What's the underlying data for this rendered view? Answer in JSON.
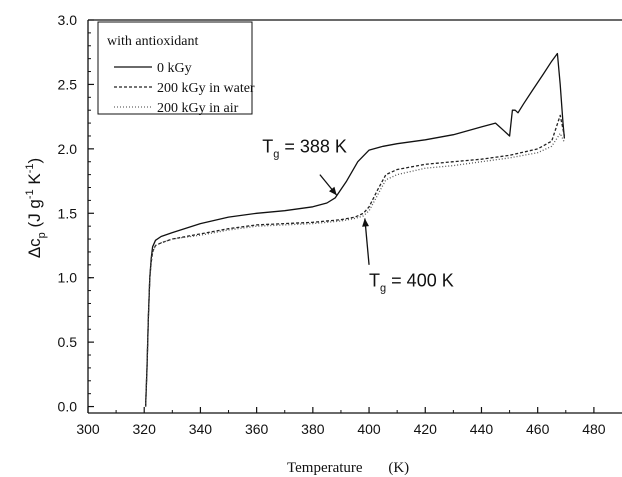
{
  "chart_data": {
    "type": "line",
    "xlabel": "Temperature",
    "xunit": "(K)",
    "ylabel": {
      "main": "Δc",
      "sub": "p",
      "unit_open": " (J g",
      "exp1": "-1",
      "unit_mid": " K",
      "exp2": "-1",
      "unit_close": ")"
    },
    "xlim": [
      300,
      490
    ],
    "ylim": [
      -0.05,
      3.0
    ],
    "xticks": [
      300,
      320,
      340,
      360,
      380,
      400,
      420,
      440,
      460,
      480
    ],
    "yticks": [
      0.0,
      0.5,
      1.0,
      1.5,
      2.0,
      2.5,
      3.0
    ],
    "xtick_labels": [
      "300",
      "320",
      "340",
      "360",
      "380",
      "400",
      "420",
      "440",
      "460",
      "480"
    ],
    "ytick_labels": [
      "0.0",
      "0.5",
      "1.0",
      "1.5",
      "2.0",
      "2.5",
      "3.0"
    ],
    "legend": {
      "title": "with antioxidant",
      "position": "top-left"
    },
    "series": [
      {
        "name": "0 kGy",
        "style": "solid",
        "color": "#111111",
        "x": [
          320.5,
          321.0,
          321.5,
          322,
          322.5,
          323,
          324,
          326,
          330,
          340,
          350,
          360,
          370,
          380,
          385,
          388,
          392,
          396,
          400,
          405,
          410,
          420,
          430,
          440,
          445,
          448,
          450,
          451,
          452,
          453,
          455,
          458,
          462,
          465,
          467,
          468,
          469,
          469.5
        ],
        "y": [
          0.0,
          0.3,
          0.7,
          1.0,
          1.15,
          1.24,
          1.29,
          1.32,
          1.35,
          1.42,
          1.47,
          1.5,
          1.52,
          1.55,
          1.58,
          1.62,
          1.75,
          1.9,
          1.99,
          2.02,
          2.04,
          2.07,
          2.11,
          2.17,
          2.2,
          2.14,
          2.1,
          2.3,
          2.3,
          2.28,
          2.35,
          2.45,
          2.58,
          2.68,
          2.74,
          2.5,
          2.2,
          2.08
        ]
      },
      {
        "name": "200 kGy in water",
        "style": "dashed",
        "color": "#222222",
        "x": [
          320.5,
          321.0,
          321.5,
          322,
          322.5,
          323,
          324,
          326,
          330,
          340,
          350,
          360,
          370,
          380,
          390,
          395,
          398,
          400,
          403,
          406,
          410,
          420,
          430,
          440,
          450,
          460,
          465,
          468,
          469.5
        ],
        "y": [
          0.0,
          0.3,
          0.7,
          1.0,
          1.12,
          1.2,
          1.25,
          1.27,
          1.3,
          1.34,
          1.38,
          1.41,
          1.42,
          1.43,
          1.45,
          1.47,
          1.5,
          1.55,
          1.68,
          1.8,
          1.84,
          1.88,
          1.9,
          1.92,
          1.95,
          2.0,
          2.06,
          2.26,
          2.1
        ]
      },
      {
        "name": "200 kGy in air",
        "style": "dotted",
        "color": "#555555",
        "x": [
          320.5,
          321.0,
          321.5,
          322,
          322.5,
          323,
          324,
          326,
          330,
          340,
          350,
          360,
          370,
          380,
          390,
          395,
          398,
          400,
          403,
          406,
          410,
          420,
          430,
          440,
          450,
          460,
          465,
          468,
          469.5
        ],
        "y": [
          0.0,
          0.3,
          0.7,
          1.0,
          1.12,
          1.2,
          1.25,
          1.27,
          1.3,
          1.33,
          1.37,
          1.4,
          1.41,
          1.42,
          1.44,
          1.46,
          1.48,
          1.52,
          1.64,
          1.76,
          1.8,
          1.85,
          1.87,
          1.9,
          1.93,
          1.97,
          2.02,
          2.12,
          2.05
        ]
      }
    ],
    "annotations": [
      {
        "id": "tg388",
        "main": "T",
        "sub": "g",
        "rest": " = 388 K",
        "text_at": [
          362,
          1.97
        ],
        "arrow_from": [
          382.5,
          1.8
        ],
        "arrow_to": [
          388.5,
          1.64
        ]
      },
      {
        "id": "tg400",
        "main": "T",
        "sub": "g",
        "rest": " = 400 K",
        "text_at": [
          400,
          0.93
        ],
        "arrow_from": [
          400,
          1.1
        ],
        "arrow_to": [
          398.5,
          1.46
        ]
      }
    ]
  }
}
